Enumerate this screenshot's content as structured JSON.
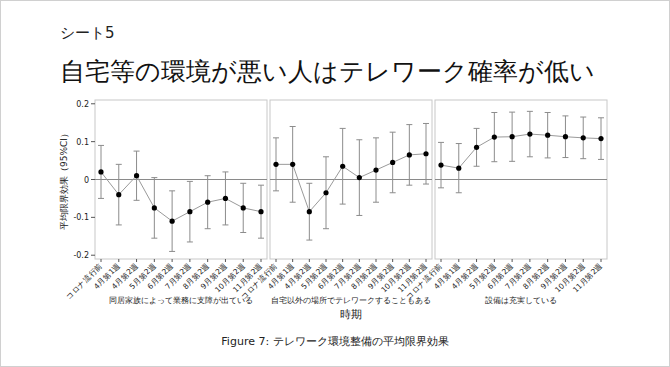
{
  "header": {
    "sheet": "シート5",
    "title": "自宅等の環境が悪い人はテレワーク確率が低い"
  },
  "caption": "Figure 7: テレワーク環境整備の平均限界効果",
  "chart_data": [
    {
      "type": "line",
      "title": "同居家族によって業務に支障が出ている",
      "ylabel": "平均限界効果（95%CI）",
      "categories": [
        "コロナ流行前",
        "4月第1週",
        "4月第2週",
        "5月第2週",
        "6月第2週",
        "7月第2週",
        "8月第2週",
        "9月第2週",
        "10月第2週",
        "11月第2週"
      ],
      "values": [
        0.02,
        -0.04,
        0.01,
        -0.075,
        -0.11,
        -0.085,
        -0.06,
        -0.05,
        -0.075,
        -0.085
      ],
      "error": [
        0.07,
        0.08,
        0.065,
        0.08,
        0.08,
        0.08,
        0.07,
        0.07,
        0.065,
        0.07
      ],
      "hline": 0,
      "color": "#000000",
      "marker": "circle",
      "ylim": [
        -0.21,
        0.21
      ],
      "yticks": [
        -0.2,
        -0.1,
        0,
        0.1,
        0.2
      ],
      "grid": false,
      "tick_labels": true
    },
    {
      "type": "line",
      "title": "自宅以外の場所でテレワークすることもある",
      "xlabel": "時期",
      "categories": [
        "コロナ流行前",
        "4月第1週",
        "4月第2週",
        "5月第2週",
        "6月第2週",
        "7月第2週",
        "8月第2週",
        "9月第2週",
        "10月第2週",
        "11月第2週"
      ],
      "values": [
        0.04,
        0.04,
        -0.085,
        -0.035,
        0.035,
        0.005,
        0.025,
        0.045,
        0.065,
        0.068
      ],
      "error": [
        0.07,
        0.1,
        0.075,
        0.095,
        0.1,
        0.1,
        0.085,
        0.08,
        0.08,
        0.08
      ],
      "hline": 0,
      "color": "#000000",
      "marker": "circle",
      "ylim": [
        -0.21,
        0.21
      ],
      "yticks": [
        -0.2,
        -0.1,
        0,
        0.1,
        0.2
      ],
      "grid": false,
      "tick_labels": "x"
    },
    {
      "type": "line",
      "title": "設備は充実している",
      "categories": [
        "コロナ流行前",
        "4月第1週",
        "4月第2週",
        "5月第2週",
        "6月第2週",
        "7月第2週",
        "8月第2週",
        "9月第2週",
        "10月第2週",
        "11月第2週"
      ],
      "values": [
        0.038,
        0.03,
        0.085,
        0.112,
        0.113,
        0.12,
        0.117,
        0.113,
        0.11,
        0.108
      ],
      "error": [
        0.06,
        0.065,
        0.05,
        0.065,
        0.065,
        0.06,
        0.06,
        0.055,
        0.055,
        0.055
      ],
      "hline": 0,
      "color": "#000000",
      "marker": "circle",
      "ylim": [
        -0.21,
        0.21
      ],
      "yticks": [
        -0.2,
        -0.1,
        0,
        0.1,
        0.2
      ],
      "grid": false,
      "tick_labels": "x"
    }
  ]
}
